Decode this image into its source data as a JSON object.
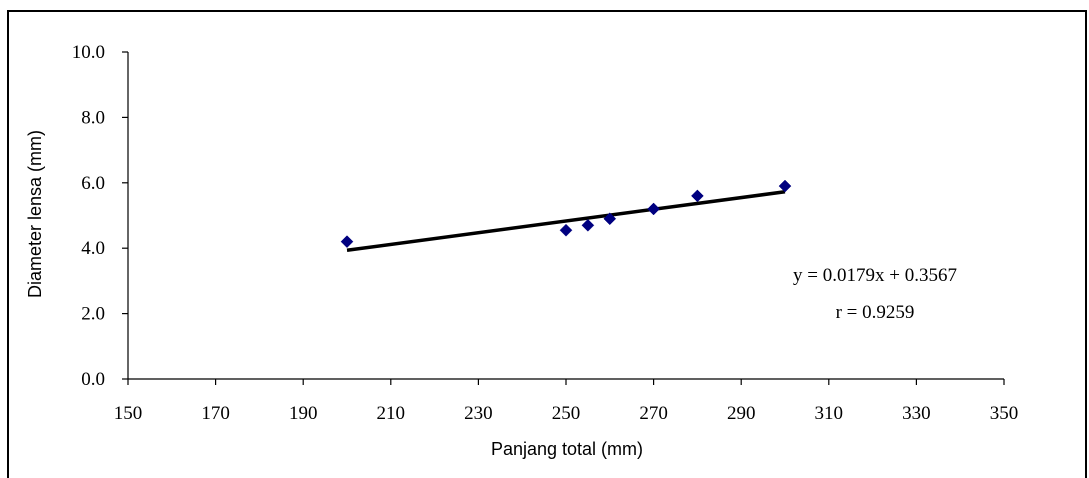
{
  "chart_data": {
    "type": "scatter",
    "xlabel": "Panjang total (mm)",
    "ylabel": "Diameter lensa (mm)",
    "xlim": [
      150,
      350
    ],
    "ylim": [
      0,
      10
    ],
    "xticks": [
      150,
      170,
      190,
      210,
      230,
      250,
      270,
      290,
      310,
      330,
      350
    ],
    "xtick_labels": [
      "150",
      "170",
      "190",
      "210",
      "230",
      "250",
      "270",
      "290",
      "310",
      "330",
      "350"
    ],
    "yticks": [
      0,
      2,
      4,
      6,
      8,
      10
    ],
    "ytick_labels": [
      "0.0",
      "2.0",
      "4.0",
      "6.0",
      "8.0",
      "10.0"
    ],
    "grid": false,
    "marker": "diamond",
    "marker_color": "#000080",
    "points": [
      {
        "x": 200,
        "y": 4.2
      },
      {
        "x": 250,
        "y": 4.55
      },
      {
        "x": 255,
        "y": 4.7
      },
      {
        "x": 260,
        "y": 4.9
      },
      {
        "x": 270,
        "y": 5.2
      },
      {
        "x": 280,
        "y": 5.6
      },
      {
        "x": 300,
        "y": 5.9
      }
    ],
    "trendline": {
      "slope": 0.0179,
      "intercept": 0.3567,
      "x_range": [
        200,
        300
      ],
      "color": "#000000"
    },
    "annotations": [
      "y = 0.0179x + 0.3567",
      "r = 0.9259"
    ]
  }
}
